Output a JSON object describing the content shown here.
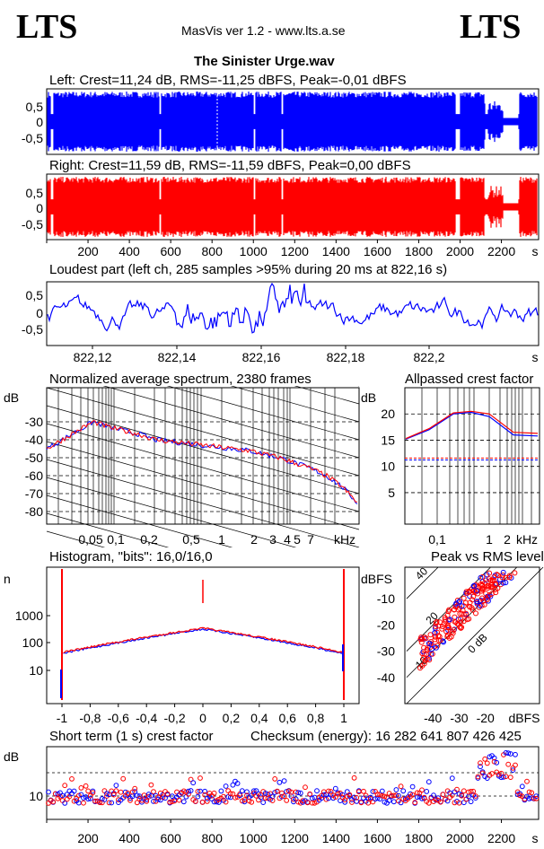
{
  "header": {
    "logo_left": "LTS",
    "logo_right": "LTS",
    "app_title": "MasVis ver 1.2 - www.lts.a.se",
    "file_name": "The Sinister Urge.wav"
  },
  "colors": {
    "left": "#0000ff",
    "right": "#ff0000",
    "grid": "#000000"
  },
  "chart_data": [
    {
      "type": "area",
      "title": "Left: Crest=11,24 dB, RMS=-11,25 dBFS, Peak=-0,01 dBFS",
      "ylim": [
        -1,
        1
      ],
      "yticks": [
        "0,5",
        "0",
        "-0,5"
      ],
      "series": [
        {
          "name": "Left",
          "color": "#0000ff"
        }
      ],
      "envelope_amplitude": [
        0.95,
        0.9,
        0.95,
        0.95,
        0.95,
        0.95,
        0.9,
        0.95,
        0.95,
        0.95,
        0.95,
        0.95,
        0.9,
        0.95,
        0.95,
        0.95,
        0.9,
        0.9,
        0.95,
        0.95,
        0.95,
        0.85,
        0.95,
        0.95,
        0.95,
        0.95,
        0.95,
        0.9,
        0.95,
        0.95,
        0.9,
        0.3,
        0.95
      ]
    },
    {
      "type": "area",
      "title": "Right: Crest=11,59 dB, RMS=-11,59 dBFS, Peak=0,00 dBFS",
      "ylim": [
        -1,
        1
      ],
      "yticks": [
        "0,5",
        "0",
        "-0,5"
      ],
      "series": [
        {
          "name": "Right",
          "color": "#ff0000"
        }
      ],
      "x_ticks": [
        "200",
        "400",
        "600",
        "800",
        "1000",
        "1200",
        "1400",
        "1600",
        "1800",
        "2000",
        "2200"
      ],
      "x_unit": "s"
    },
    {
      "type": "line",
      "title": "Loudest part (left  ch, 285 samples >95% during 20 ms at 822,16 s)",
      "ylim": [
        -1,
        1
      ],
      "yticks": [
        "0,5",
        "0",
        "-0,5"
      ],
      "x_ticks": [
        "822,12",
        "822,14",
        "822,16",
        "822,18",
        "822,2"
      ],
      "x_unit": "s"
    },
    {
      "type": "line",
      "title": "Normalized average spectrum, 2380 frames",
      "ylabel": "dB",
      "yticks": [
        "-30",
        "-40",
        "-50",
        "-60",
        "-70",
        "-80"
      ],
      "x_ticks": [
        "0,05",
        "0,1",
        "0,2",
        "0,5",
        "1",
        "2",
        "3",
        "4",
        "5",
        "7"
      ],
      "x_unit": "kHz",
      "values": [
        -45,
        -40,
        -35,
        -30,
        -33,
        -35,
        -37,
        -40,
        -41,
        -42,
        -43,
        -44,
        -45,
        -46,
        -48,
        -50,
        -53,
        -56,
        -60,
        -66,
        -75
      ]
    },
    {
      "type": "line",
      "title": "Allpassed crest factor",
      "ylabel": "dB",
      "yticks": [
        "20",
        "15",
        "10",
        "5"
      ],
      "x_ticks": [
        "0,1",
        "1",
        "2"
      ],
      "x_unit": "kHz",
      "series": [
        {
          "name": "Left",
          "color": "#0000ff",
          "values": [
            15.2,
            17.0,
            20.0,
            20.3,
            19.5,
            16.0,
            15.8
          ]
        },
        {
          "name": "Right",
          "color": "#ff0000",
          "values": [
            15.3,
            17.2,
            20.2,
            20.5,
            20.0,
            16.5,
            16.3
          ]
        }
      ]
    },
    {
      "type": "line",
      "title": "Histogram, \"bits\": 16,0/16,0",
      "ylabel": "n",
      "yticks": [
        "1000",
        "100",
        "10"
      ],
      "x_ticks": [
        "-1",
        "-0,8",
        "-0,6",
        "-0,4",
        "-0,2",
        "0",
        "0,2",
        "0,4",
        "0,6",
        "0,8",
        "1"
      ]
    },
    {
      "type": "scatter",
      "title": "Peak vs RMS level",
      "ylabel": "dBFS",
      "yticks": [
        "-10",
        "-20",
        "-30",
        "-40"
      ],
      "x_ticks": [
        "-40",
        "-30",
        "-20"
      ],
      "x_unit": "dBFS",
      "diag_labels": [
        "40",
        "20",
        "10",
        "0 dB"
      ]
    },
    {
      "type": "scatter",
      "title": "Short term (1 s) crest factor",
      "ylabel": "dB",
      "yticks": [
        "10"
      ],
      "x_ticks": [
        "200",
        "400",
        "600",
        "800",
        "1000",
        "1200",
        "1400",
        "1600",
        "1800",
        "2000",
        "2200"
      ],
      "x_unit": "s",
      "checksum_label": "Checksum (energy):  16 282 641 807 426 425"
    }
  ]
}
